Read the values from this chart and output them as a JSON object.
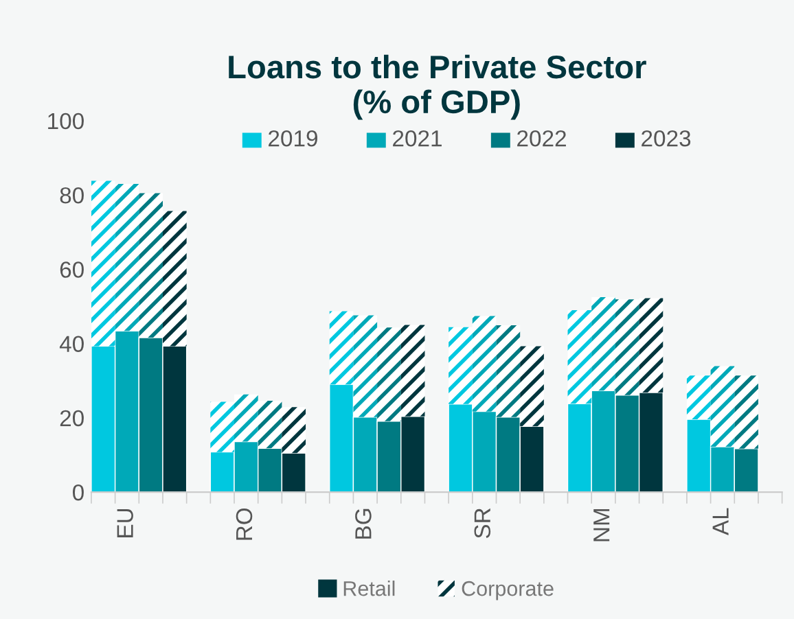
{
  "chart_data": {
    "type": "bar",
    "title": "Loans to the Private Sector\n(% of GDP)",
    "categories": [
      null,
      "EU",
      null,
      null,
      null,
      null,
      "RO",
      null,
      null,
      null,
      null,
      "BG",
      null,
      null,
      null,
      null,
      "SR",
      null,
      null,
      null,
      null,
      "NM",
      null,
      null,
      null,
      null,
      "AL",
      null,
      null
    ],
    "stacked": true,
    "series": [
      {
        "name": "Retail",
        "color": "#00363e",
        "colors": [
          "#00c8e0",
          "#00a9b8",
          "#007a82",
          "#00363e",
          null,
          "#00c8e0",
          "#00a9b8",
          "#007a82",
          "#00363e",
          null,
          "#00c8e0",
          "#00a9b8",
          "#007a82",
          "#00363e",
          null,
          "#00c8e0",
          "#00a9b8",
          "#007a82",
          "#00363e",
          null,
          "#00c8e0",
          "#00a9b8",
          "#007a82",
          "#00363e",
          null,
          "#00c8e0",
          "#00a9b8",
          "#007a82",
          "#00363e"
        ],
        "values": [
          39.3,
          43.4,
          41.6,
          39.3,
          null,
          10.8,
          13.6,
          11.8,
          10.5,
          null,
          29.0,
          20.2,
          19.1,
          20.4,
          null,
          23.7,
          21.7,
          20.2,
          17.7,
          null,
          23.8,
          27.3,
          26.1,
          26.8,
          null,
          19.6,
          12.2,
          11.7,
          null
        ]
      },
      {
        "name": "Corporate",
        "color": "#00363e",
        "colors": [
          "#00c8e0",
          "#00a9b8",
          "#007a82",
          "#00363e",
          null,
          "#00c8e0",
          "#00a9b8",
          "#007a82",
          "#00363e",
          null,
          "#00c8e0",
          "#00a9b8",
          "#007a82",
          "#00363e",
          null,
          "#00c8e0",
          "#00a9b8",
          "#007a82",
          "#00363e",
          null,
          "#00c8e0",
          "#00a9b8",
          "#007a82",
          "#00363e",
          null,
          "#00c8e0",
          "#00a9b8",
          "#007a82",
          "#00363e"
        ],
        "values": [
          44.5,
          39.6,
          38.9,
          36.4,
          null,
          13.5,
          12.7,
          12.8,
          12.4,
          null,
          19.7,
          27.4,
          25.2,
          24.6,
          null,
          20.7,
          25.7,
          24.7,
          21.6,
          null,
          25.2,
          25.2,
          25.8,
          25.4,
          null,
          11.8,
          21.7,
          19.7,
          null
        ]
      }
    ],
    "annotations": [
      "2019",
      "2021",
      "2022",
      "2023"
    ],
    "ylim": [
      0,
      100
    ],
    "yticks": [
      0,
      20,
      40,
      60,
      80,
      100
    ],
    "grid": false,
    "legend": "bottom"
  }
}
